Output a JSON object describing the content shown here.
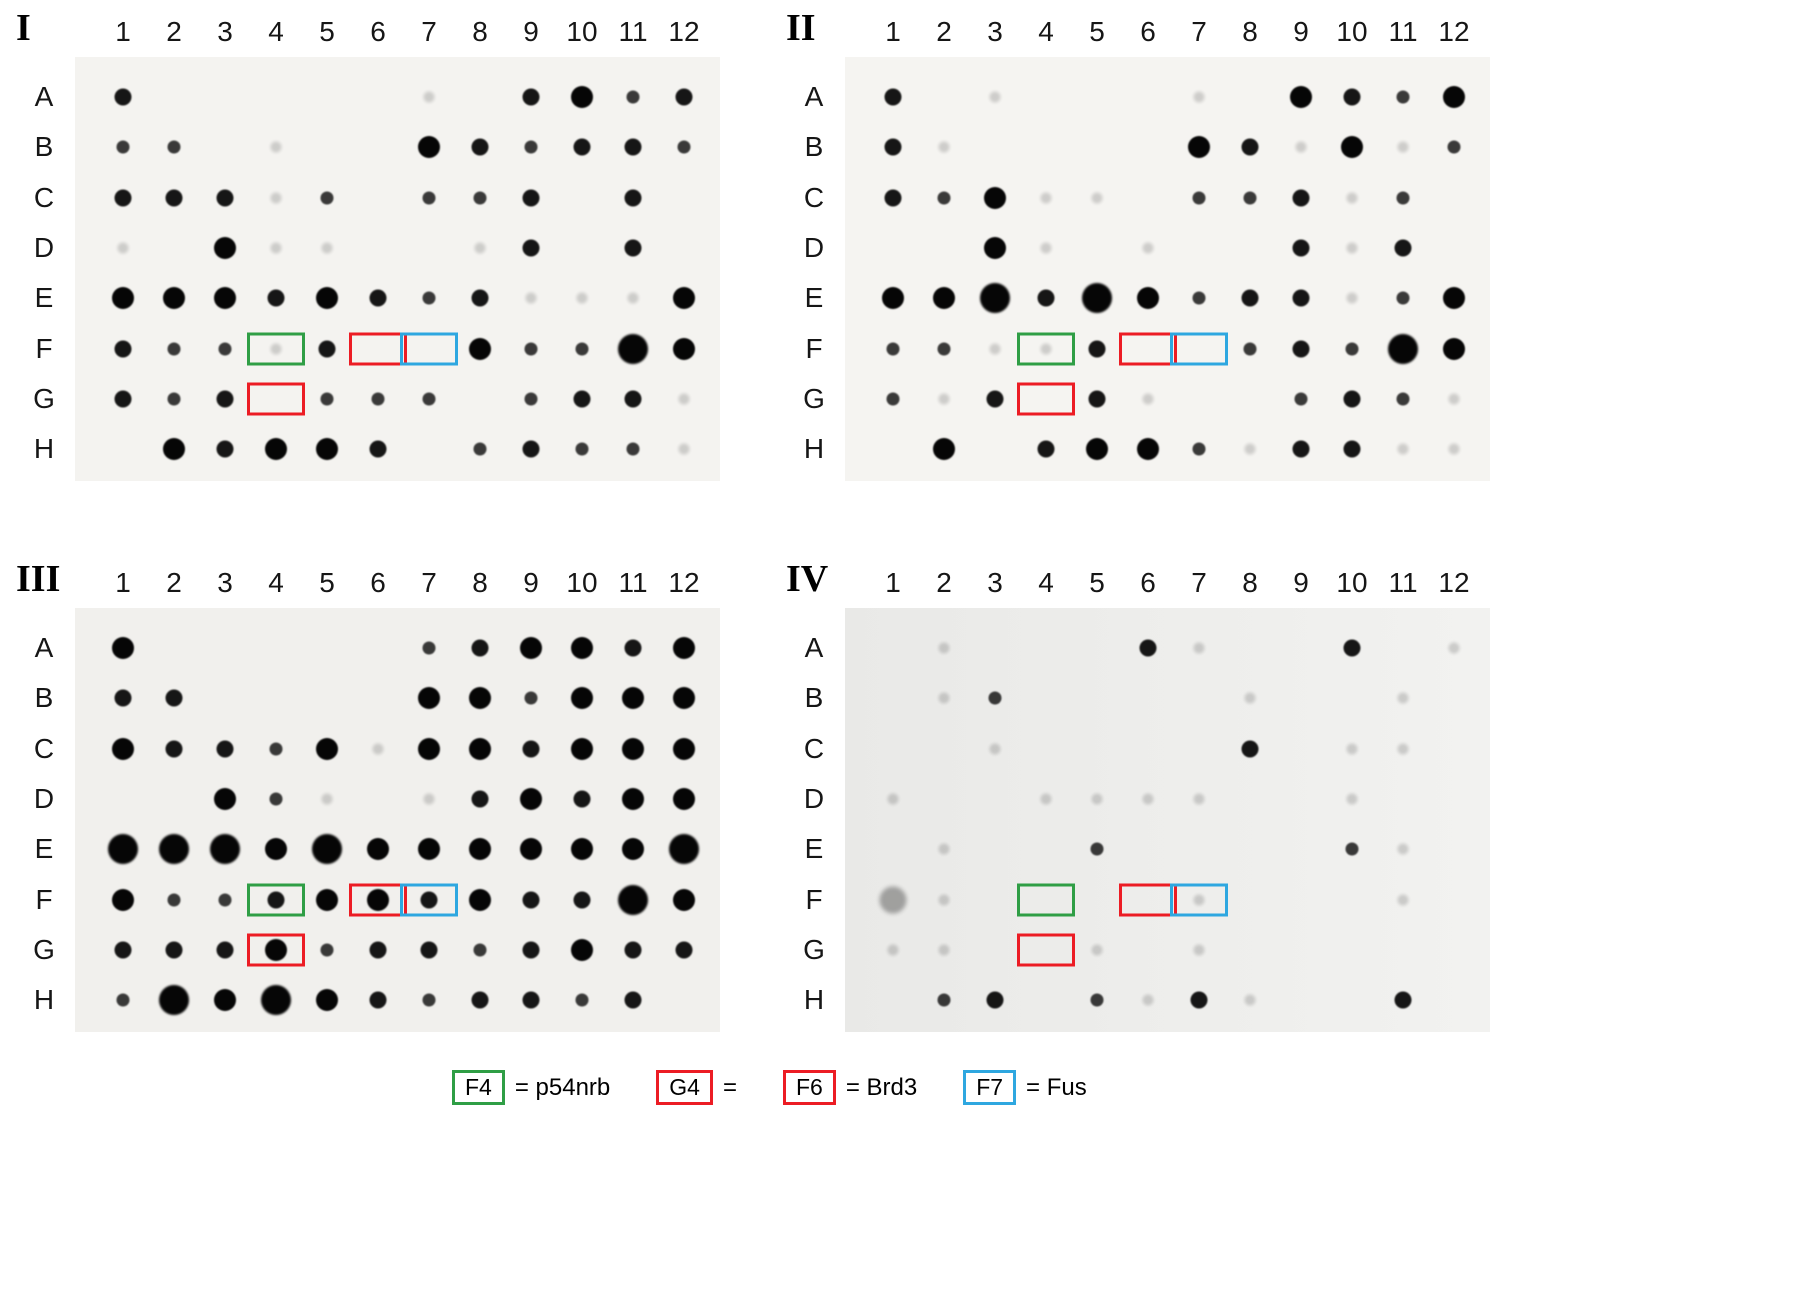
{
  "figure": {
    "colors": {
      "green": "#2f9e45",
      "red": "#ec1c24",
      "blue": "#2ea7e0"
    },
    "spot_scale_note": "0=absent, 1=faint smudge, 2=small dark, 3=medium dark, 4=large dark, 5=very large dark, 6=large faint",
    "panels": [
      {
        "numeral": "I",
        "columns": [
          "1",
          "2",
          "3",
          "4",
          "5",
          "6",
          "7",
          "8",
          "9",
          "10",
          "11",
          "12"
        ],
        "rows": [
          "A",
          "B",
          "C",
          "D",
          "E",
          "F",
          "G",
          "H"
        ],
        "spots": [
          [
            3,
            0,
            0,
            0,
            0,
            0,
            1,
            0,
            3,
            4,
            2,
            3
          ],
          [
            2,
            2,
            0,
            1,
            0,
            0,
            4,
            3,
            2,
            3,
            3,
            2
          ],
          [
            3,
            3,
            3,
            1,
            2,
            0,
            2,
            2,
            3,
            0,
            3,
            0
          ],
          [
            1,
            0,
            4,
            1,
            1,
            0,
            0,
            1,
            3,
            0,
            3,
            0
          ],
          [
            4,
            4,
            4,
            3,
            4,
            3,
            2,
            3,
            1,
            1,
            1,
            4
          ],
          [
            3,
            2,
            2,
            1,
            3,
            0,
            0,
            4,
            2,
            2,
            5,
            4
          ],
          [
            3,
            2,
            3,
            0,
            2,
            2,
            2,
            0,
            2,
            3,
            3,
            1
          ],
          [
            0,
            4,
            3,
            4,
            4,
            3,
            0,
            2,
            3,
            2,
            2,
            1
          ]
        ],
        "boxes": [
          {
            "cell": "F4",
            "row": 5,
            "col": 3,
            "color": "green"
          },
          {
            "cell": "F6",
            "row": 5,
            "col": 5,
            "color": "red"
          },
          {
            "cell": "F7",
            "row": 5,
            "col": 6,
            "color": "blue"
          },
          {
            "cell": "G4",
            "row": 6,
            "col": 3,
            "color": "red"
          }
        ]
      },
      {
        "numeral": "II",
        "columns": [
          "1",
          "2",
          "3",
          "4",
          "5",
          "6",
          "7",
          "8",
          "9",
          "10",
          "11",
          "12"
        ],
        "rows": [
          "A",
          "B",
          "C",
          "D",
          "E",
          "F",
          "G",
          "H"
        ],
        "spots": [
          [
            3,
            0,
            1,
            0,
            0,
            0,
            1,
            0,
            4,
            3,
            2,
            4
          ],
          [
            3,
            1,
            0,
            0,
            0,
            0,
            4,
            3,
            1,
            4,
            1,
            2
          ],
          [
            3,
            2,
            4,
            1,
            1,
            0,
            2,
            2,
            3,
            1,
            2,
            0
          ],
          [
            0,
            0,
            4,
            1,
            0,
            1,
            0,
            0,
            3,
            1,
            3,
            0
          ],
          [
            4,
            4,
            5,
            3,
            5,
            4,
            2,
            3,
            3,
            1,
            2,
            4
          ],
          [
            2,
            2,
            1,
            1,
            3,
            0,
            0,
            2,
            3,
            2,
            5,
            4
          ],
          [
            2,
            1,
            3,
            0,
            3,
            1,
            0,
            0,
            2,
            3,
            2,
            1
          ],
          [
            0,
            4,
            0,
            3,
            4,
            4,
            2,
            1,
            3,
            3,
            1,
            1
          ]
        ],
        "boxes": [
          {
            "cell": "F4",
            "row": 5,
            "col": 3,
            "color": "green"
          },
          {
            "cell": "F6",
            "row": 5,
            "col": 5,
            "color": "red"
          },
          {
            "cell": "F7",
            "row": 5,
            "col": 6,
            "color": "blue"
          },
          {
            "cell": "G4",
            "row": 6,
            "col": 3,
            "color": "red"
          }
        ]
      },
      {
        "numeral": "III",
        "columns": [
          "1",
          "2",
          "3",
          "4",
          "5",
          "6",
          "7",
          "8",
          "9",
          "10",
          "11",
          "12"
        ],
        "rows": [
          "A",
          "B",
          "C",
          "D",
          "E",
          "F",
          "G",
          "H"
        ],
        "spots": [
          [
            4,
            0,
            0,
            0,
            0,
            0,
            2,
            3,
            4,
            4,
            3,
            4
          ],
          [
            3,
            3,
            0,
            0,
            0,
            0,
            4,
            4,
            2,
            4,
            4,
            4
          ],
          [
            4,
            3,
            3,
            2,
            4,
            1,
            4,
            4,
            3,
            4,
            4,
            4
          ],
          [
            0,
            0,
            4,
            2,
            1,
            0,
            1,
            3,
            4,
            3,
            4,
            4
          ],
          [
            5,
            5,
            5,
            4,
            5,
            4,
            4,
            4,
            4,
            4,
            4,
            5
          ],
          [
            4,
            2,
            2,
            3,
            4,
            4,
            3,
            4,
            3,
            3,
            5,
            4
          ],
          [
            3,
            3,
            3,
            4,
            2,
            3,
            3,
            2,
            3,
            4,
            3,
            3
          ],
          [
            2,
            5,
            4,
            5,
            4,
            3,
            2,
            3,
            3,
            2,
            3,
            0
          ]
        ],
        "boxes": [
          {
            "cell": "F4",
            "row": 5,
            "col": 3,
            "color": "green"
          },
          {
            "cell": "F6",
            "row": 5,
            "col": 5,
            "color": "red"
          },
          {
            "cell": "F7",
            "row": 5,
            "col": 6,
            "color": "blue"
          },
          {
            "cell": "G4",
            "row": 6,
            "col": 3,
            "color": "red"
          }
        ]
      },
      {
        "numeral": "IV",
        "columns": [
          "1",
          "2",
          "3",
          "4",
          "5",
          "6",
          "7",
          "8",
          "9",
          "10",
          "11",
          "12"
        ],
        "rows": [
          "A",
          "B",
          "C",
          "D",
          "E",
          "F",
          "G",
          "H"
        ],
        "spots": [
          [
            0,
            1,
            0,
            0,
            0,
            3,
            1,
            0,
            0,
            3,
            0,
            1
          ],
          [
            0,
            1,
            2,
            0,
            0,
            0,
            0,
            1,
            0,
            0,
            1,
            0
          ],
          [
            0,
            0,
            1,
            0,
            0,
            0,
            0,
            3,
            0,
            1,
            1,
            0
          ],
          [
            1,
            0,
            0,
            1,
            1,
            1,
            1,
            0,
            0,
            1,
            0,
            0
          ],
          [
            0,
            1,
            0,
            0,
            2,
            0,
            0,
            0,
            0,
            2,
            1,
            0
          ],
          [
            6,
            1,
            0,
            0,
            0,
            0,
            1,
            0,
            0,
            0,
            1,
            0
          ],
          [
            1,
            1,
            0,
            0,
            1,
            0,
            1,
            0,
            0,
            0,
            0,
            0
          ],
          [
            0,
            2,
            3,
            0,
            2,
            1,
            3,
            1,
            0,
            0,
            3,
            0
          ]
        ],
        "boxes": [
          {
            "cell": "F4",
            "row": 5,
            "col": 3,
            "color": "green"
          },
          {
            "cell": "F6",
            "row": 5,
            "col": 5,
            "color": "red"
          },
          {
            "cell": "F7",
            "row": 5,
            "col": 6,
            "color": "blue"
          },
          {
            "cell": "G4",
            "row": 6,
            "col": 3,
            "color": "red"
          }
        ]
      }
    ],
    "legend": {
      "items": [
        {
          "box": "F4",
          "color": "green",
          "text": "= p54nrb"
        },
        {
          "box": "G4",
          "color": "red",
          "text": "="
        },
        {
          "box": "F6",
          "color": "red",
          "text": "= Brd3"
        },
        {
          "box": "F7",
          "color": "blue",
          "text": "= Fus"
        }
      ]
    }
  }
}
